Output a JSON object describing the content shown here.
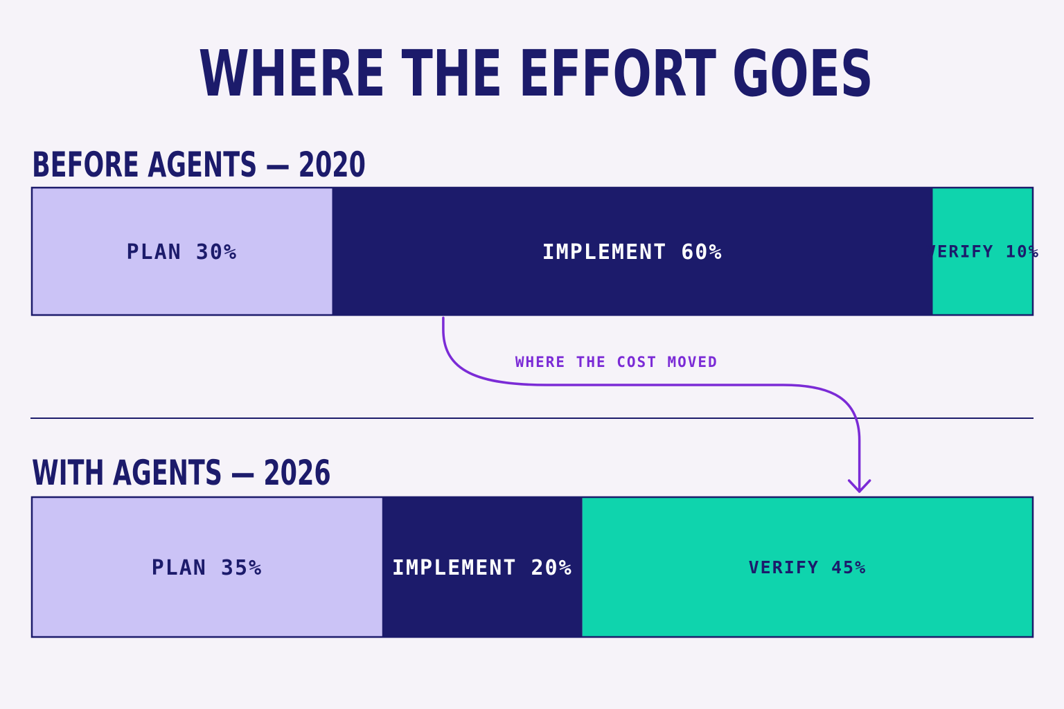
{
  "title": "WHERE THE EFFORT GOES",
  "colors": {
    "background": "#f6f3f9",
    "ink": "#1c1b6b",
    "plan": "#cbc3f6",
    "implement": "#1c1b6b",
    "verify": "#0fd4ad",
    "accent": "#7b2bd6"
  },
  "chart_data": {
    "type": "bar",
    "orientation": "horizontal",
    "stacked": true,
    "normalized_to": 100,
    "unit": "%",
    "rows": [
      {
        "heading": "BEFORE AGENTS — 2020",
        "segments": [
          {
            "label": "PLAN 30%",
            "category": "plan",
            "value": 30
          },
          {
            "label": "IMPLEMENT 60%",
            "category": "implement",
            "value": 60
          },
          {
            "label": "VERIFY 10%",
            "category": "verify",
            "value": 10
          }
        ]
      },
      {
        "heading": "WITH AGENTS — 2026",
        "segments": [
          {
            "label": "PLAN 35%",
            "category": "plan",
            "value": 35
          },
          {
            "label": "IMPLEMENT 20%",
            "category": "implement",
            "value": 20
          },
          {
            "label": "VERIFY 45%",
            "category": "verify",
            "value": 45
          }
        ]
      }
    ],
    "annotation": {
      "text": "WHERE THE COST MOVED",
      "from": {
        "row": 0,
        "category": "implement"
      },
      "to": {
        "row": 1,
        "category": "verify"
      }
    },
    "legend": "none",
    "grid": false
  }
}
